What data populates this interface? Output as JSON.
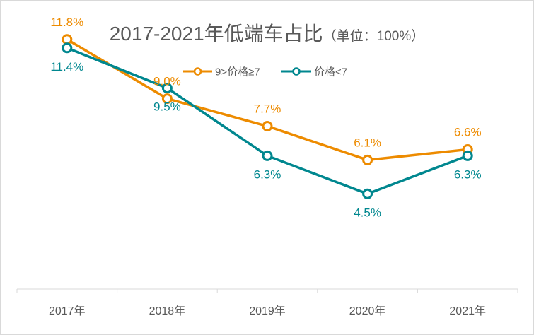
{
  "chart_data": {
    "type": "line",
    "title": "2017-2021年低端车占比",
    "subtitle": "（单位：100%）",
    "xlabel": "",
    "ylabel": "",
    "categories": [
      "2017年",
      "2018年",
      "2019年",
      "2020年",
      "2021年"
    ],
    "series": [
      {
        "name": "9>价格≥7",
        "values": [
          11.8,
          9.0,
          7.7,
          6.1,
          6.6
        ],
        "labels": [
          "11.8%",
          "9.0%",
          "7.7%",
          "6.1%",
          "6.6%"
        ],
        "color": "#ED8B00",
        "label_position": "above"
      },
      {
        "name": "价格<7",
        "values": [
          11.4,
          9.5,
          6.3,
          4.5,
          6.3
        ],
        "labels": [
          "11.4%",
          "9.5%",
          "6.3%",
          "4.5%",
          "6.3%"
        ],
        "color": "#00878F",
        "label_position": "below"
      }
    ],
    "ylim": [
      0,
      15
    ],
    "grid": false,
    "legend": "top-center"
  }
}
